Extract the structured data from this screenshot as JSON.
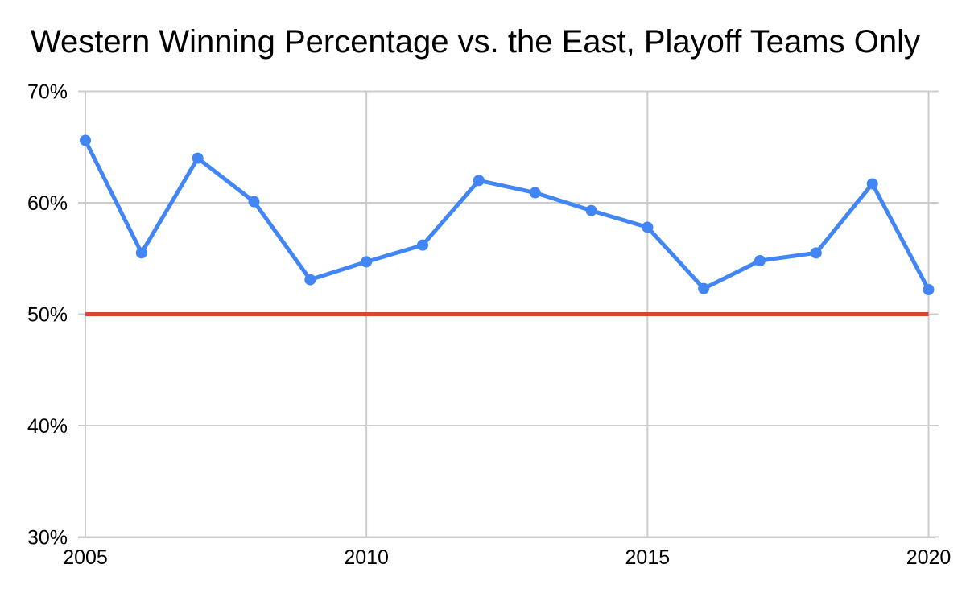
{
  "header": {
    "title": "Western Winning Percentage vs. the East, Playoff Teams Only"
  },
  "chart_data": {
    "type": "line",
    "title": "Western Winning Percentage vs. the East, Playoff Teams Only",
    "xlabel": "",
    "ylabel": "",
    "x": [
      2005,
      2006,
      2007,
      2008,
      2009,
      2010,
      2011,
      2012,
      2013,
      2014,
      2015,
      2016,
      2017,
      2018,
      2019,
      2020
    ],
    "series": [
      {
        "name": "Western winning percentage vs. the East (playoff teams)",
        "color": "#4285F4",
        "values": [
          65.6,
          55.5,
          64.0,
          60.1,
          53.1,
          54.7,
          56.2,
          62.0,
          60.9,
          59.3,
          57.8,
          52.3,
          54.8,
          55.5,
          61.7,
          52.2
        ]
      }
    ],
    "reference_line": {
      "name": "50 percent baseline",
      "value": 50,
      "color": "#DB4437"
    },
    "ylim": [
      30,
      70
    ],
    "xlim": [
      2005,
      2020
    ],
    "y_ticks": [
      {
        "value": 30,
        "label": "30%"
      },
      {
        "value": 40,
        "label": "40%"
      },
      {
        "value": 50,
        "label": "50%"
      },
      {
        "value": 60,
        "label": "60%"
      },
      {
        "value": 70,
        "label": "70%"
      }
    ],
    "x_ticks": [
      {
        "value": 2005,
        "label": "2005"
      },
      {
        "value": 2010,
        "label": "2010"
      },
      {
        "value": 2015,
        "label": "2015"
      },
      {
        "value": 2020,
        "label": "2020"
      }
    ],
    "grid": true,
    "legend": "none",
    "colors": {
      "series": "#4285F4",
      "reference": "#DB4437",
      "grid": "#CCCCCC",
      "text": "#000000",
      "background": "#FFFFFF"
    }
  }
}
